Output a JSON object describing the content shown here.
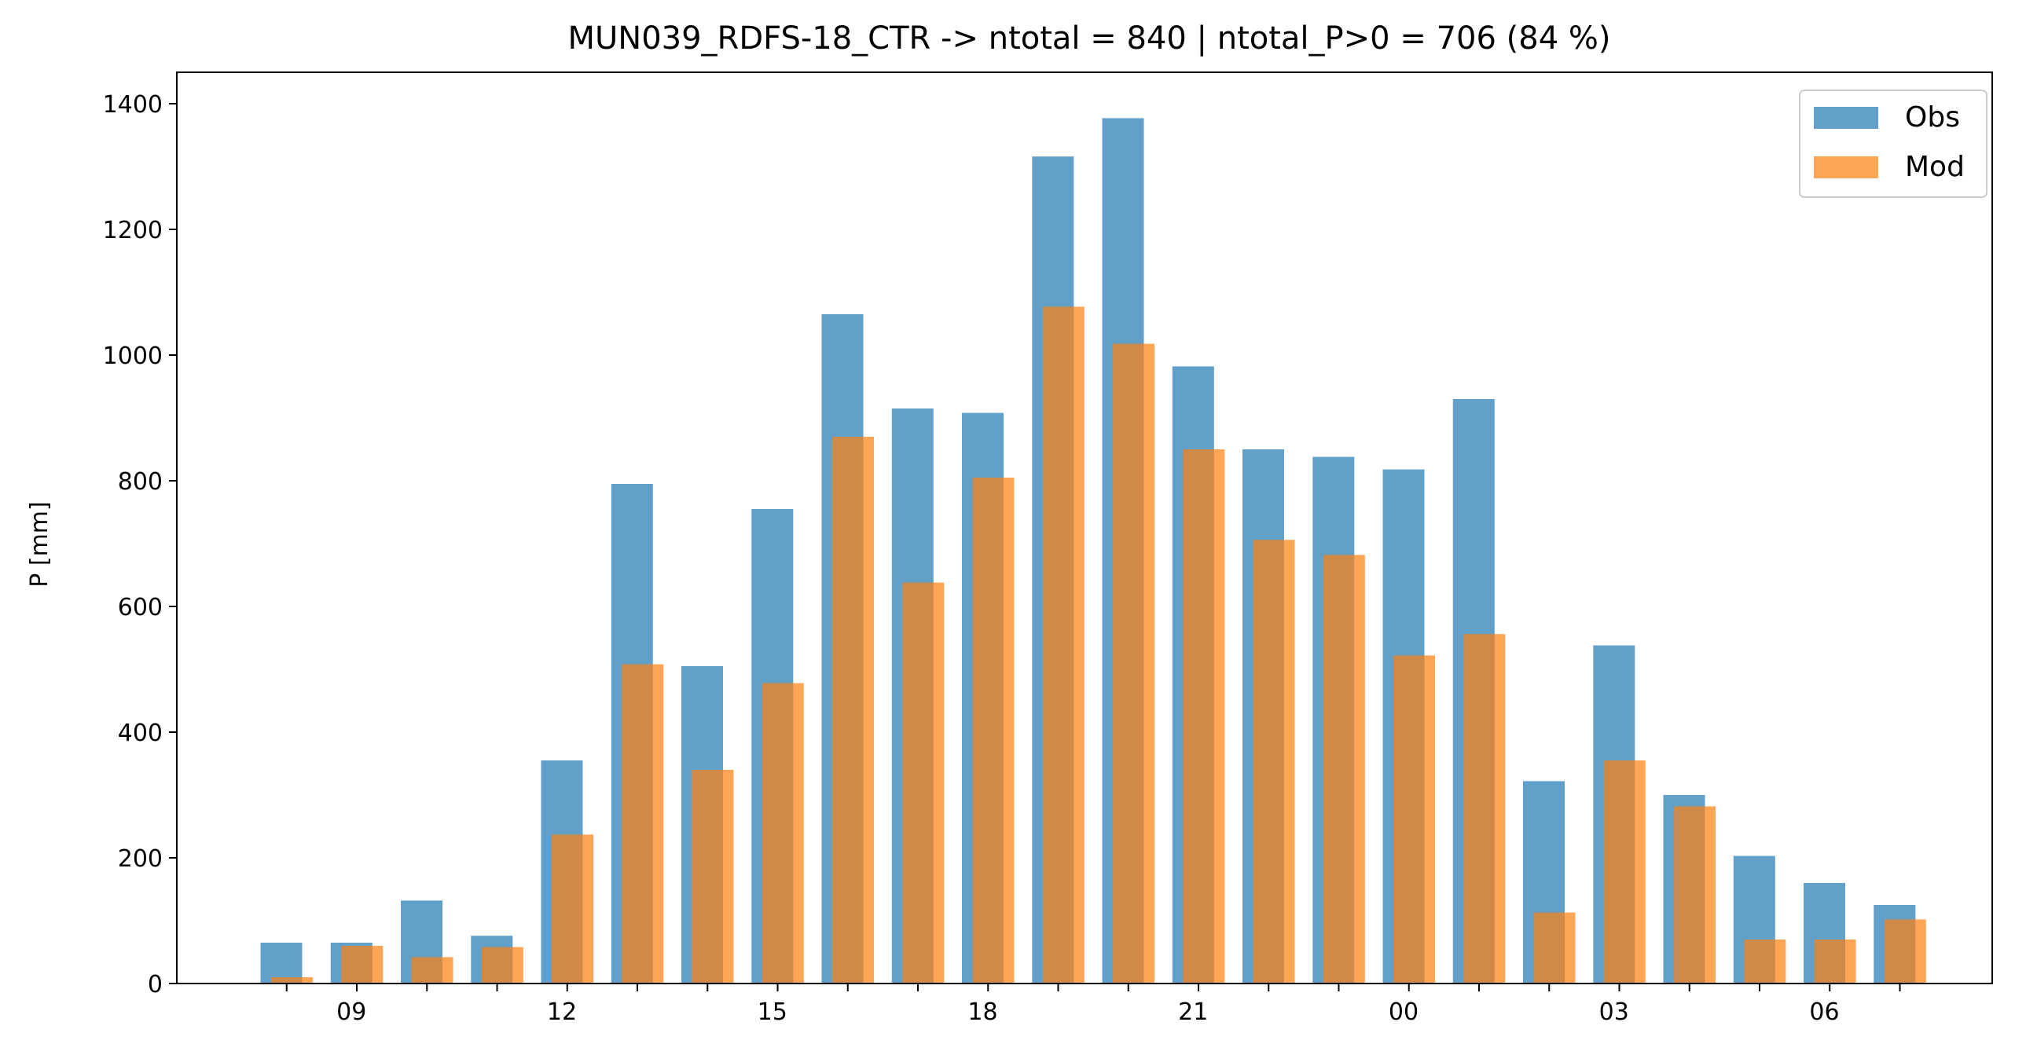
{
  "chart_data": {
    "type": "bar",
    "title": "MUN039_RDFS-18_CTR -> ntotal = 840 | ntotal_P>0 = 706 (84 %)",
    "xlabel": "",
    "ylabel": "P [mm]",
    "ylim": [
      0,
      1450
    ],
    "yticks": [
      0,
      200,
      400,
      600,
      800,
      1000,
      1200,
      1400
    ],
    "categories": [
      "08",
      "09",
      "10",
      "11",
      "12",
      "13",
      "14",
      "15",
      "16",
      "17",
      "18",
      "19",
      "20",
      "21",
      "22",
      "23",
      "00",
      "01",
      "02",
      "03",
      "04",
      "05",
      "06",
      "07"
    ],
    "xtick_labels": [
      {
        "hour": "09",
        "label": "09"
      },
      {
        "hour": "12",
        "label": "12"
      },
      {
        "hour": "15",
        "label": "15"
      },
      {
        "hour": "18",
        "label": "18"
      },
      {
        "hour": "21",
        "label": "21"
      },
      {
        "hour": "00",
        "label": "00"
      },
      {
        "hour": "03",
        "label": "03"
      },
      {
        "hour": "06",
        "label": "06"
      }
    ],
    "series": [
      {
        "name": "Obs",
        "color": "#1f77b4",
        "alpha": 0.7,
        "values": [
          65,
          65,
          132,
          76,
          355,
          795,
          505,
          755,
          1065,
          915,
          908,
          1316,
          1377,
          982,
          850,
          838,
          818,
          930,
          322,
          538,
          300,
          203,
          160,
          125
        ]
      },
      {
        "name": "Mod",
        "color": "#ff7f0e",
        "alpha": 0.7,
        "values": [
          10,
          60,
          42,
          58,
          237,
          508,
          340,
          478,
          870,
          638,
          805,
          1077,
          1018,
          850,
          706,
          682,
          522,
          556,
          113,
          355,
          282,
          70,
          70,
          102
        ]
      }
    ],
    "grid": false,
    "legend_position": "upper right"
  }
}
